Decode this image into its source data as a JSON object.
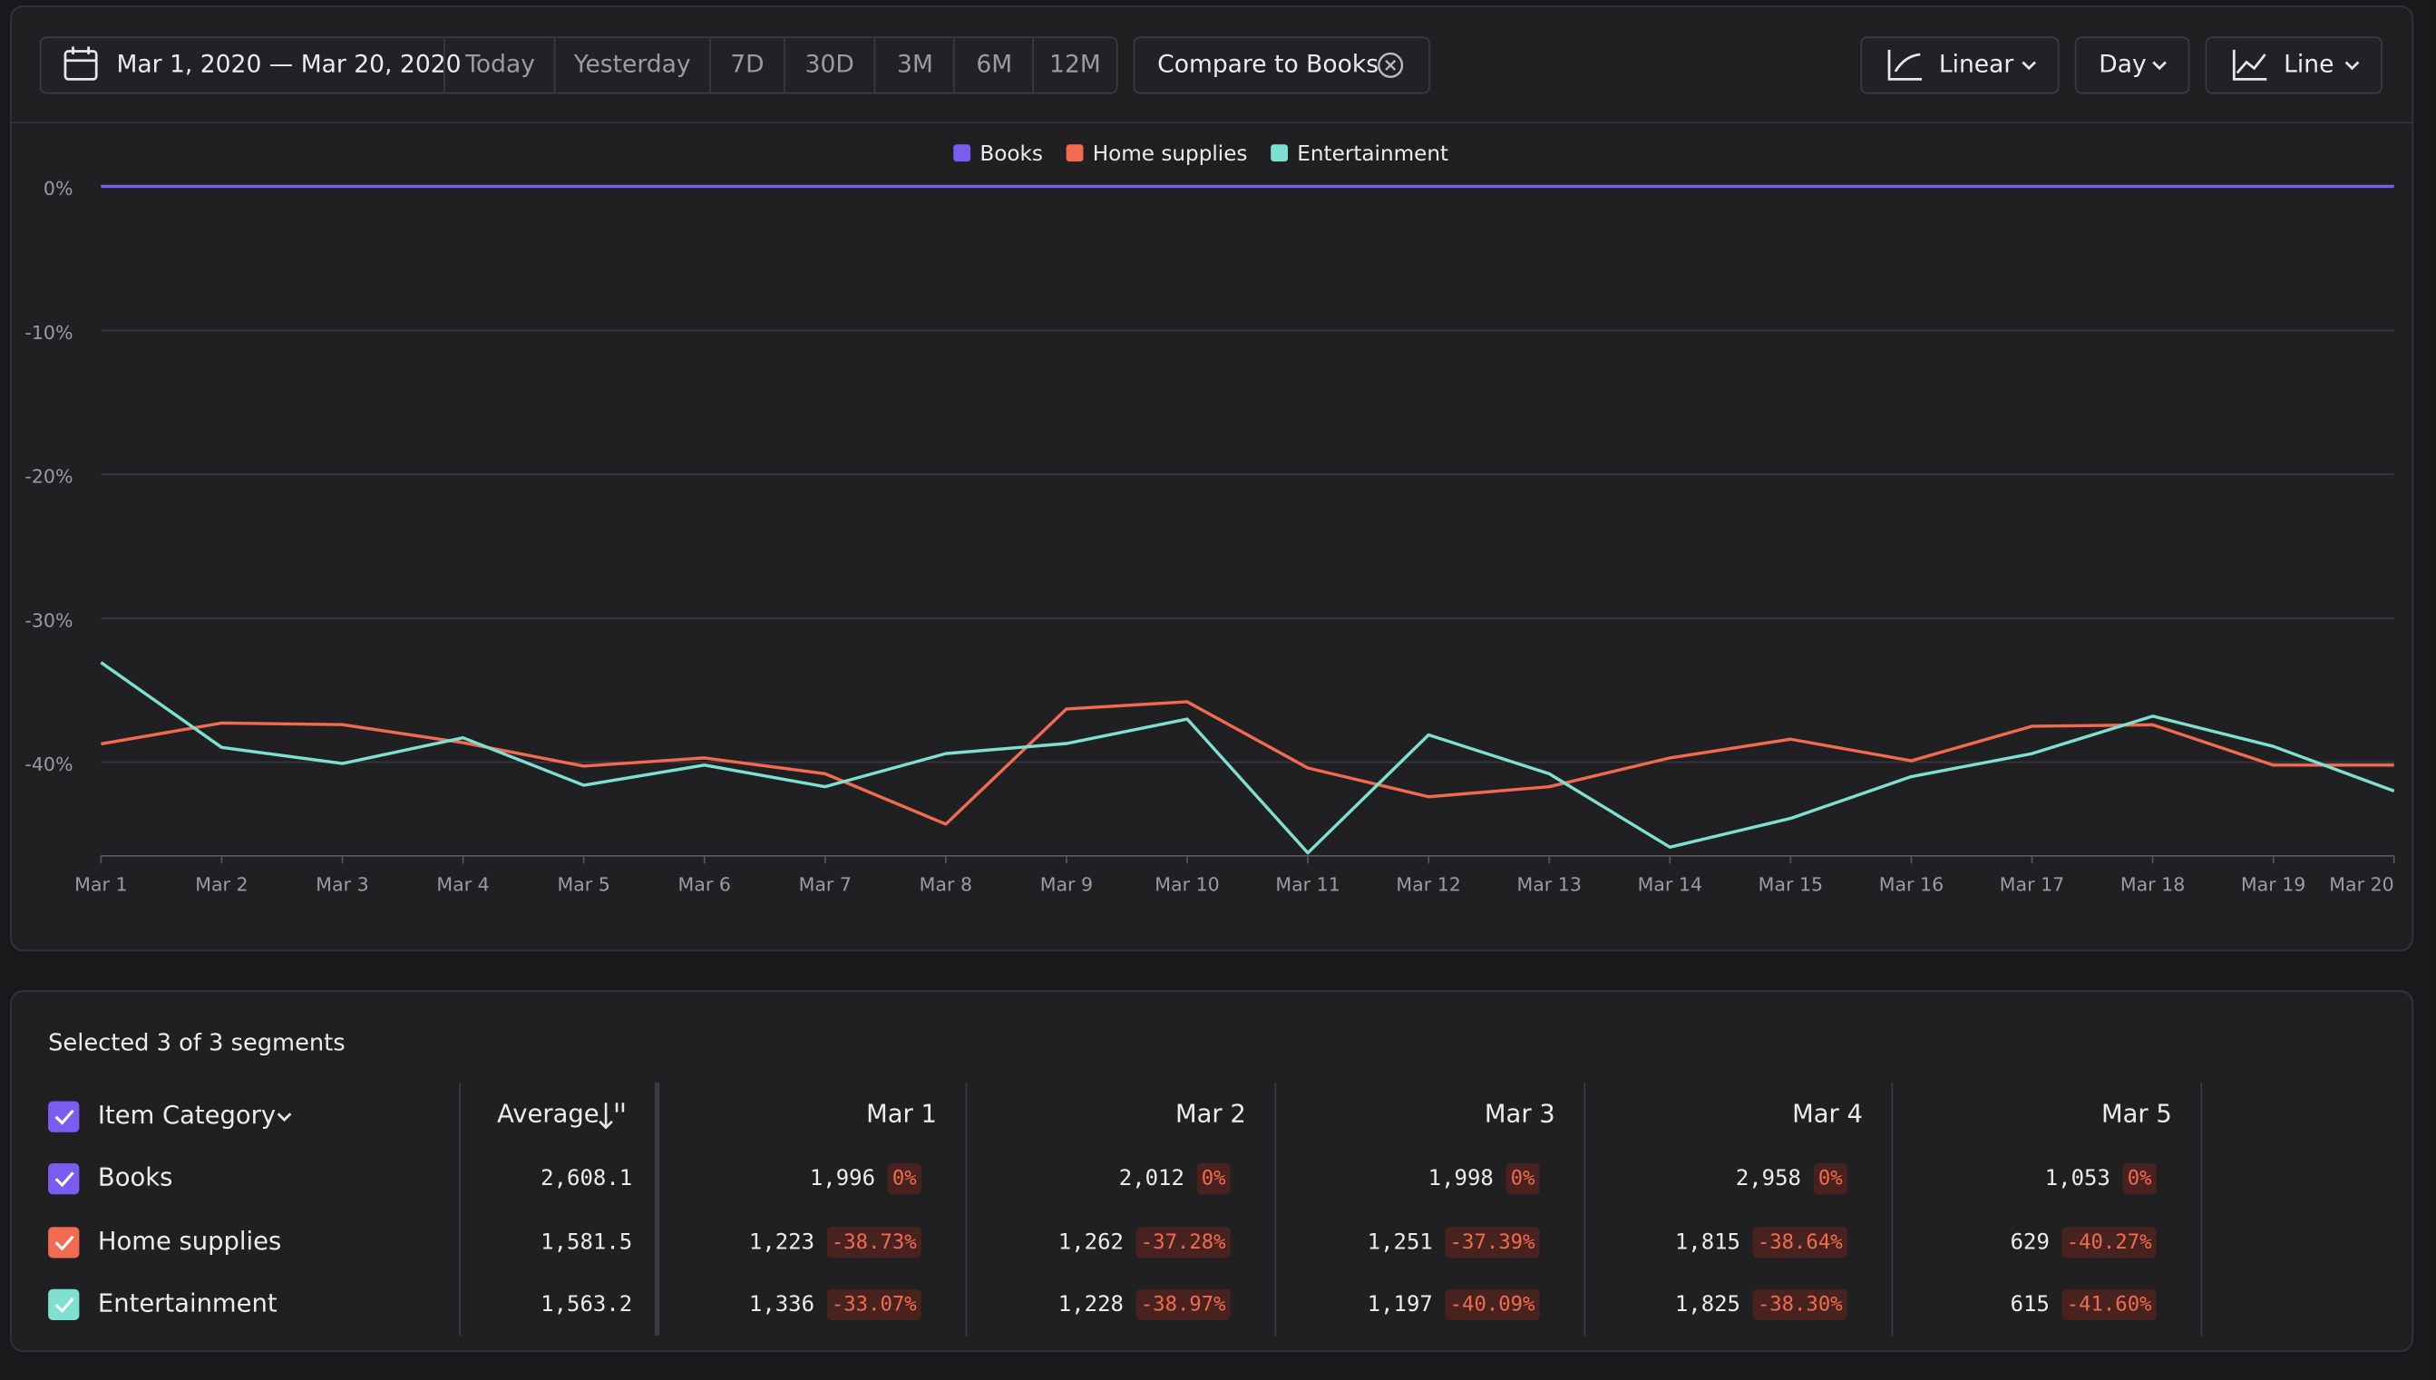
{
  "toolbar": {
    "date_range": "Mar 1, 2020 — Mar 20, 2020",
    "presets": [
      "Today",
      "Yesterday",
      "7D",
      "30D",
      "3M",
      "6M",
      "12M"
    ],
    "compare": "Compare to Books",
    "scale": "Linear",
    "interval": "Day",
    "chart_style": "Line"
  },
  "chart_data": {
    "type": "line",
    "legend": "top",
    "grid": true,
    "categories": [
      "Mar 1",
      "Mar 2",
      "Mar 3",
      "Mar 4",
      "Mar 5",
      "Mar 6",
      "Mar 7",
      "Mar 8",
      "Mar 9",
      "Mar 10",
      "Mar 11",
      "Mar 12",
      "Mar 13",
      "Mar 14",
      "Mar 15",
      "Mar 16",
      "Mar 17",
      "Mar 18",
      "Mar 19",
      "Mar 20"
    ],
    "ylim": [
      -46.5,
      0
    ],
    "yticks": [
      {
        "value": 0,
        "label": "0%"
      },
      {
        "value": -10,
        "label": "-10%"
      },
      {
        "value": -20,
        "label": "-20%"
      },
      {
        "value": -30,
        "label": "-30%"
      },
      {
        "value": -40,
        "label": "-40%"
      }
    ],
    "series": [
      {
        "name": "Books",
        "color": "#7b5cf0",
        "values": [
          0,
          0,
          0,
          0,
          0,
          0,
          0,
          0,
          0,
          0,
          0,
          0,
          0,
          0,
          0,
          0,
          0,
          0,
          0,
          0
        ]
      },
      {
        "name": "Home supplies",
        "color": "#f26b50",
        "values": [
          -38.73,
          -37.28,
          -37.39,
          -38.64,
          -40.27,
          -39.7,
          -40.8,
          -44.3,
          -36.3,
          -35.8,
          -40.4,
          -42.4,
          -41.7,
          -39.7,
          -38.4,
          -39.9,
          -37.5,
          -37.4,
          -40.2,
          -40.2
        ]
      },
      {
        "name": "Entertainment",
        "color": "#7ee0d0",
        "values": [
          -33.07,
          -38.97,
          -40.09,
          -38.3,
          -41.6,
          -40.2,
          -41.7,
          -39.4,
          -38.7,
          -37.0,
          -46.3,
          -38.1,
          -40.8,
          -45.9,
          -43.9,
          -41.0,
          -39.4,
          -36.8,
          -38.9,
          -42.0
        ]
      }
    ]
  },
  "table": {
    "summary": "Selected 3 of 3 segments",
    "group_label": "Item Category",
    "average_label": "Average",
    "columns": [
      "Mar 1",
      "Mar 2",
      "Mar 3",
      "Mar 4",
      "Mar 5"
    ],
    "rows": [
      {
        "name": "Books",
        "average": "2,608.1",
        "cells": [
          [
            "1,996",
            "0%"
          ],
          [
            "2,012",
            "0%"
          ],
          [
            "1,998",
            "0%"
          ],
          [
            "2,958",
            "0%"
          ],
          [
            "1,053",
            "0%"
          ]
        ]
      },
      {
        "name": "Home supplies",
        "average": "1,581.5",
        "cells": [
          [
            "1,223",
            "-38.73%"
          ],
          [
            "1,262",
            "-37.28%"
          ],
          [
            "1,251",
            "-37.39%"
          ],
          [
            "1,815",
            "-38.64%"
          ],
          [
            "629",
            "-40.27%"
          ]
        ]
      },
      {
        "name": "Entertainment",
        "average": "1,563.2",
        "cells": [
          [
            "1,336",
            "-33.07%"
          ],
          [
            "1,228",
            "-38.97%"
          ],
          [
            "1,197",
            "-40.09%"
          ],
          [
            "1,825",
            "-38.30%"
          ],
          [
            "615",
            "-41.60%"
          ]
        ]
      }
    ]
  }
}
